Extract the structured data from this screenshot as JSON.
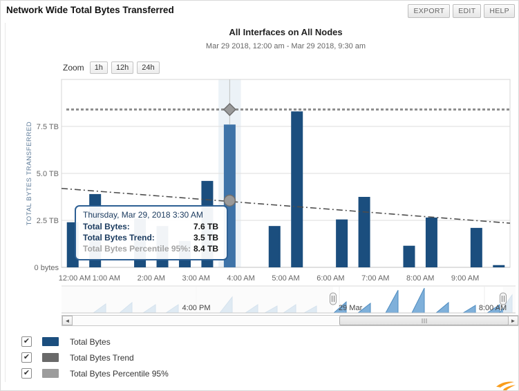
{
  "header": {
    "title": "Network Wide Total Bytes Transferred",
    "buttons": [
      {
        "label": "EXPORT"
      },
      {
        "label": "EDIT"
      },
      {
        "label": "HELP"
      }
    ]
  },
  "zoom_controls": {
    "label": "Zoom",
    "options": [
      "1h",
      "12h",
      "24h"
    ]
  },
  "chart_data": {
    "type": "bar",
    "title": "All Interfaces on All Nodes",
    "subtitle": "Mar 29 2018, 12:00 am - Mar 29 2018, 9:30 am",
    "ylabel": "TOTAL BYTES TRANSFERRED",
    "ylim": [
      0,
      10
    ],
    "unit": "TB",
    "grid": true,
    "yticks": [
      {
        "value": 0,
        "label": "0 bytes"
      },
      {
        "value": 2.5,
        "label": "2.5 TB"
      },
      {
        "value": 5,
        "label": "5.0 TB"
      },
      {
        "value": 7.5,
        "label": "7.5 TB"
      }
    ],
    "xticks": [
      {
        "hour": 0,
        "label": "12:00 AM"
      },
      {
        "hour": 1,
        "label": "1:00 AM"
      },
      {
        "hour": 2,
        "label": "2:00 AM"
      },
      {
        "hour": 3,
        "label": "3:00 AM"
      },
      {
        "hour": 4,
        "label": "4:00 AM"
      },
      {
        "hour": 5,
        "label": "5:00 AM"
      },
      {
        "hour": 6,
        "label": "6:00 AM"
      },
      {
        "hour": 7,
        "label": "7:00 AM"
      },
      {
        "hour": 8,
        "label": "8:00 AM"
      },
      {
        "hour": 9,
        "label": "9:00 AM"
      }
    ],
    "series": [
      {
        "name": "Total Bytes",
        "type": "column",
        "color": "#1b4e7e",
        "points": [
          {
            "time": "12:00 AM",
            "hour": 0,
            "value": 2.4
          },
          {
            "time": "12:30 AM",
            "hour": 0.5,
            "value": 3.9
          },
          {
            "time": "1:30 AM",
            "hour": 1.5,
            "value": 2.6
          },
          {
            "time": "2:00 AM",
            "hour": 2,
            "value": 2.2
          },
          {
            "time": "2:30 AM",
            "hour": 2.5,
            "value": 1.4
          },
          {
            "time": "3:00 AM",
            "hour": 3,
            "value": 4.6
          },
          {
            "time": "3:30 AM",
            "hour": 3.5,
            "value": 7.6,
            "highlighted": true
          },
          {
            "time": "4:30 AM",
            "hour": 4.5,
            "value": 2.2
          },
          {
            "time": "5:00 AM",
            "hour": 5,
            "value": 8.3
          },
          {
            "time": "6:00 AM",
            "hour": 6,
            "value": 2.55
          },
          {
            "time": "6:30 AM",
            "hour": 6.5,
            "value": 3.75
          },
          {
            "time": "7:30 AM",
            "hour": 7.5,
            "value": 1.15
          },
          {
            "time": "8:00 AM",
            "hour": 8,
            "value": 2.65
          },
          {
            "time": "9:00 AM",
            "hour": 9,
            "value": 2.1
          },
          {
            "time": "9:30 AM",
            "hour": 9.5,
            "value": 0.12
          }
        ]
      },
      {
        "name": "Total Bytes Trend",
        "type": "line",
        "style": "dashdot",
        "color": "#4d4d4d",
        "start_value": 4.2,
        "end_value": 2.35
      },
      {
        "name": "Total Bytes Percentile 95%",
        "type": "line",
        "style": "dashed",
        "color": "#8e8e8e",
        "value": 8.4
      }
    ],
    "hover": {
      "hour": 3.5,
      "bar_value": 7.6,
      "trend_value": 3.55,
      "percentile_value": 8.4,
      "highlight_color": "#3e73a8"
    }
  },
  "tooltip": {
    "title": "Thursday, Mar 29, 2018 3:30 AM",
    "rows": [
      {
        "label": "Total Bytes:",
        "value": "7.6 TB",
        "muted": false
      },
      {
        "label": "Total Bytes Trend:",
        "value": "3.5 TB",
        "muted": false
      },
      {
        "label": "Total Bytes Percentile 95%:",
        "value": "8.4 TB",
        "muted": true
      }
    ]
  },
  "navigator": {
    "labels": [
      {
        "text": "4:00 PM",
        "x": 283,
        "align": "middle"
      },
      {
        "text": "29 Mar",
        "x": 489,
        "align": "start"
      },
      {
        "text": "8:00 AM",
        "x": 712,
        "align": "middle"
      }
    ],
    "tick_lines": [
      283,
      490,
      700
    ],
    "selection": {
      "start": 481,
      "end": 727
    },
    "spike_color": "#7fb0da",
    "spike_edge": "#4f8cc0",
    "spikes": [
      {
        "x": 152,
        "h": 13
      },
      {
        "x": 190,
        "h": 15
      },
      {
        "x": 224,
        "h": 12
      },
      {
        "x": 257,
        "h": 12
      },
      {
        "x": 335,
        "h": 23
      },
      {
        "x": 372,
        "h": 12
      },
      {
        "x": 400,
        "h": 10
      },
      {
        "x": 427,
        "h": 12
      },
      {
        "x": 457,
        "h": 10
      },
      {
        "x": 500,
        "h": 16
      },
      {
        "x": 535,
        "h": 14
      },
      {
        "x": 575,
        "h": 33
      },
      {
        "x": 613,
        "h": 36
      },
      {
        "x": 648,
        "h": 15
      },
      {
        "x": 687,
        "h": 11
      },
      {
        "x": 722,
        "h": 12
      },
      {
        "x": 740,
        "h": 26
      }
    ]
  },
  "legend": {
    "items": [
      {
        "label": "Total Bytes",
        "color": "#1b4e7e",
        "checked": true
      },
      {
        "label": "Total Bytes Trend",
        "color": "#696969",
        "checked": true
      },
      {
        "label": "Total Bytes Percentile 95%",
        "color": "#9c9c9c",
        "checked": true
      }
    ]
  },
  "colors": {
    "bar": "#1b4e7e",
    "bar_highlight": "#3e73a8",
    "grid": "#dedede",
    "plot_border": "#d6d6d6",
    "axis_text": "#666666",
    "y_title": "#5e7b99",
    "tooltip_border": "#2c5f93",
    "logo_orange": "#f99d1c"
  }
}
